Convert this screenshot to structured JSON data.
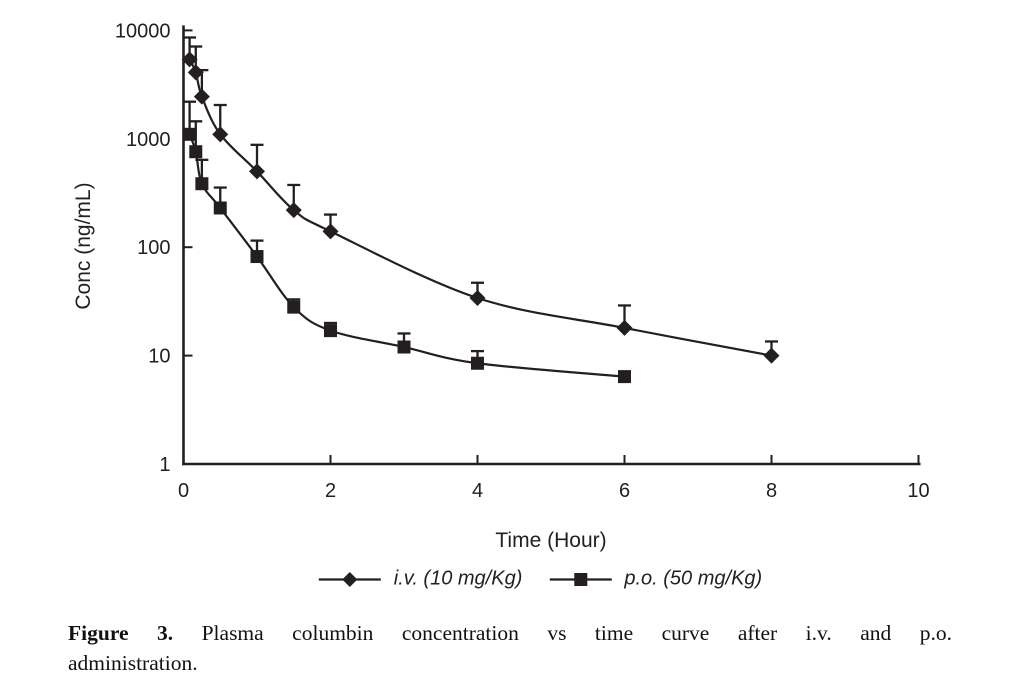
{
  "figure": {
    "caption_label": "Figure 3.",
    "caption_line1_rest": "Plasma columbin concentration vs time curve after i.v. and p.o.",
    "caption_line2": "administration."
  },
  "chart_data": {
    "type": "line",
    "title": "",
    "xlabel": "Time (Hour)",
    "ylabel": "Conc (ng/mL)",
    "x_scale": "linear",
    "y_scale": "log",
    "xlim": [
      0,
      10
    ],
    "ylim": [
      1,
      10000
    ],
    "x_ticks": [
      0,
      2,
      4,
      6,
      8,
      10
    ],
    "y_ticks": [
      1,
      10,
      100,
      1000,
      10000
    ],
    "grid": false,
    "legend_position": "bottom",
    "error_bars": "upper-only",
    "color": "#231f20",
    "series": [
      {
        "name": "i.v. (10 mg/Kg)",
        "marker": "diamond",
        "x": [
          0.083,
          0.167,
          0.25,
          0.5,
          1,
          1.5,
          2,
          4,
          6,
          8
        ],
        "y": [
          5400,
          4100,
          2450,
          1100,
          500,
          220,
          140,
          34,
          18,
          10
        ],
        "err_hi": [
          8600,
          7100,
          4300,
          2050,
          880,
          375,
          200,
          47,
          29,
          13.5
        ]
      },
      {
        "name": "p.o. (50 mg/Kg)",
        "marker": "square",
        "x": [
          0.083,
          0.167,
          0.25,
          0.5,
          1,
          1.5,
          2,
          3,
          4,
          6
        ],
        "y": [
          1100,
          760,
          385,
          230,
          82,
          28,
          17,
          12,
          8.5,
          6.4
        ],
        "err_hi": [
          2200,
          1450,
          640,
          355,
          115,
          33,
          20,
          16,
          11,
          null
        ]
      }
    ]
  }
}
